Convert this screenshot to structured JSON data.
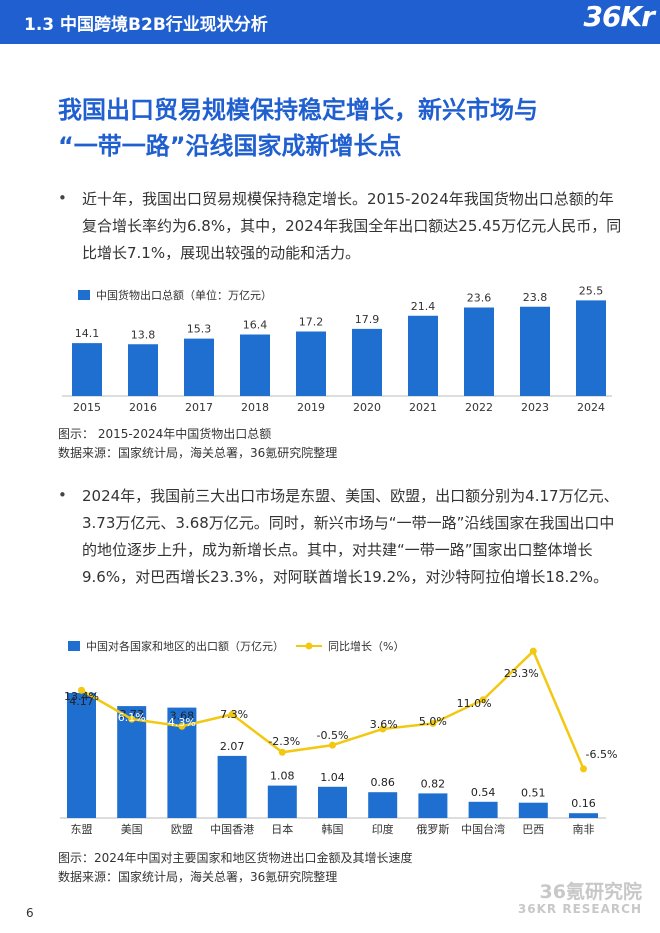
{
  "header": {
    "section": "1.3 中国跨境B2B行业现状分析",
    "logo": "36Kr"
  },
  "heading": {
    "line1": "我国出口贸易规模保持稳定增长，新兴市场与",
    "line2": "“一带一路”沿线国家成新增长点"
  },
  "bullet_symbol": "•",
  "para1": "近十年，我国出口贸易规模保持稳定增长。2015-2024年我国货物出口总额的年复合增长率约为6.8%，其中，2024年我国全年出口额达25.45万亿元人民币，同比增长7.1%，展现出较强的动能和活力。",
  "para2": "2024年，我国前三大出口市场是东盟、美国、欧盟，出口额分别为4.17万亿元、3.73万亿元、3.68万亿元。同时，新兴市场与“一带一路”沿线国家在我国出口中的地位逐步上升，成为新增长点。其中，对共建“一带一路”国家出口整体增长9.6%，对巴西增长23.3%，对阿联酋增长19.2%，对沙特阿拉伯增长18.2%。",
  "caption1": {
    "figure": "图示：  2015-2024年中国货物出口总额",
    "source": "数据来源：国家统计局，海关总署，36氪研究院整理"
  },
  "caption2": {
    "figure": "图示：2024年中国对主要国家和地区货物进出口金额及其增长速度",
    "source": "数据来源：国家统计局，海关总署，36氪研究院整理"
  },
  "page_number": "6",
  "watermark": {
    "line1": "36氪研究院",
    "line2": "36KR RESEARCH"
  },
  "colors": {
    "brand": "#1f5fcf",
    "bar": "#1f6fd0",
    "line": "#f2c811"
  },
  "chart_data": [
    {
      "type": "bar",
      "legend": "中国货物出口总额（单位：万亿元）",
      "categories": [
        "2015",
        "2016",
        "2017",
        "2018",
        "2019",
        "2020",
        "2021",
        "2022",
        "2023",
        "2024"
      ],
      "values": [
        14.1,
        13.8,
        15.3,
        16.4,
        17.2,
        17.9,
        21.4,
        23.6,
        23.8,
        25.5
      ],
      "labels": [
        "14.1",
        "13.8",
        "15.3",
        "16.4",
        "17.2",
        "17.9",
        "21.4",
        "23.6",
        "23.8",
        "25.5"
      ]
    },
    {
      "type": "bar+line",
      "categories": [
        "东盟",
        "美国",
        "欧盟",
        "中国香港",
        "日本",
        "韩国",
        "印度",
        "俄罗斯",
        "中国台湾",
        "巴西",
        "南非"
      ],
      "series": [
        {
          "name": "中国对各国家和地区的出口额（万亿元）",
          "type": "bar",
          "values": [
            4.17,
            3.73,
            3.68,
            2.07,
            1.08,
            1.04,
            0.86,
            0.82,
            0.54,
            0.51,
            0.16
          ],
          "labels": [
            "4.17",
            "3.73",
            "3.68",
            "2.07",
            "1.08",
            "1.04",
            "0.86",
            "0.82",
            "0.54",
            "0.51",
            "0.16"
          ]
        },
        {
          "name": "同比增长（%）",
          "type": "line",
          "values": [
            13.4,
            6.1,
            4.3,
            7.3,
            -2.3,
            -0.5,
            3.6,
            5.0,
            11.0,
            23.3,
            -6.5
          ],
          "labels": [
            "13.4%",
            "6.1%",
            "4.3%",
            "7.3%",
            "-2.3%",
            "-0.5%",
            "3.6%",
            "5.0%",
            "11.0%",
            "23.3%",
            "-6.5%"
          ]
        }
      ]
    }
  ]
}
